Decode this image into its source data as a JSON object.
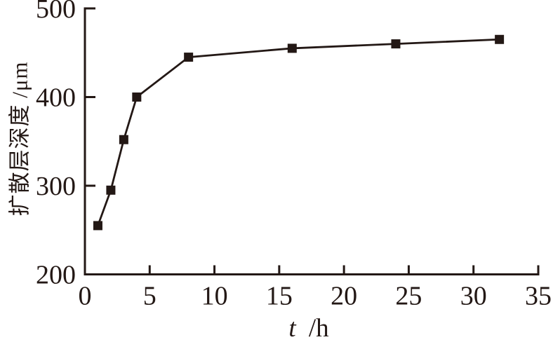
{
  "figure": {
    "background_color": "#ffffff",
    "ink_color": "#231815"
  },
  "chart_data": {
    "type": "line",
    "title": "",
    "xlabel": "t /h",
    "xlabel_parts": {
      "variable": "t",
      "unit": "/h"
    },
    "ylabel": "扩散层深度 /μm",
    "x": [
      1,
      2,
      3,
      4,
      8,
      16,
      24,
      32
    ],
    "series": [
      {
        "name": "扩散层深度",
        "values": [
          255,
          295,
          352,
          400,
          445,
          455,
          460,
          465
        ]
      }
    ],
    "xlim": [
      0,
      35
    ],
    "ylim": [
      200,
      500
    ],
    "x_ticks": [
      0,
      5,
      10,
      15,
      20,
      25,
      30,
      35
    ],
    "y_ticks": [
      200,
      300,
      400,
      500
    ],
    "x_tick_labels": [
      "0",
      "5",
      "10",
      "15",
      "20",
      "25",
      "30",
      "35"
    ],
    "y_tick_labels": [
      "200",
      "300",
      "400",
      "500"
    ],
    "grid": false,
    "legend": "none",
    "marker": "filled-square",
    "line_color": "#231815",
    "marker_color": "#231815",
    "spines": [
      "left",
      "bottom"
    ],
    "tick_direction": "in"
  }
}
